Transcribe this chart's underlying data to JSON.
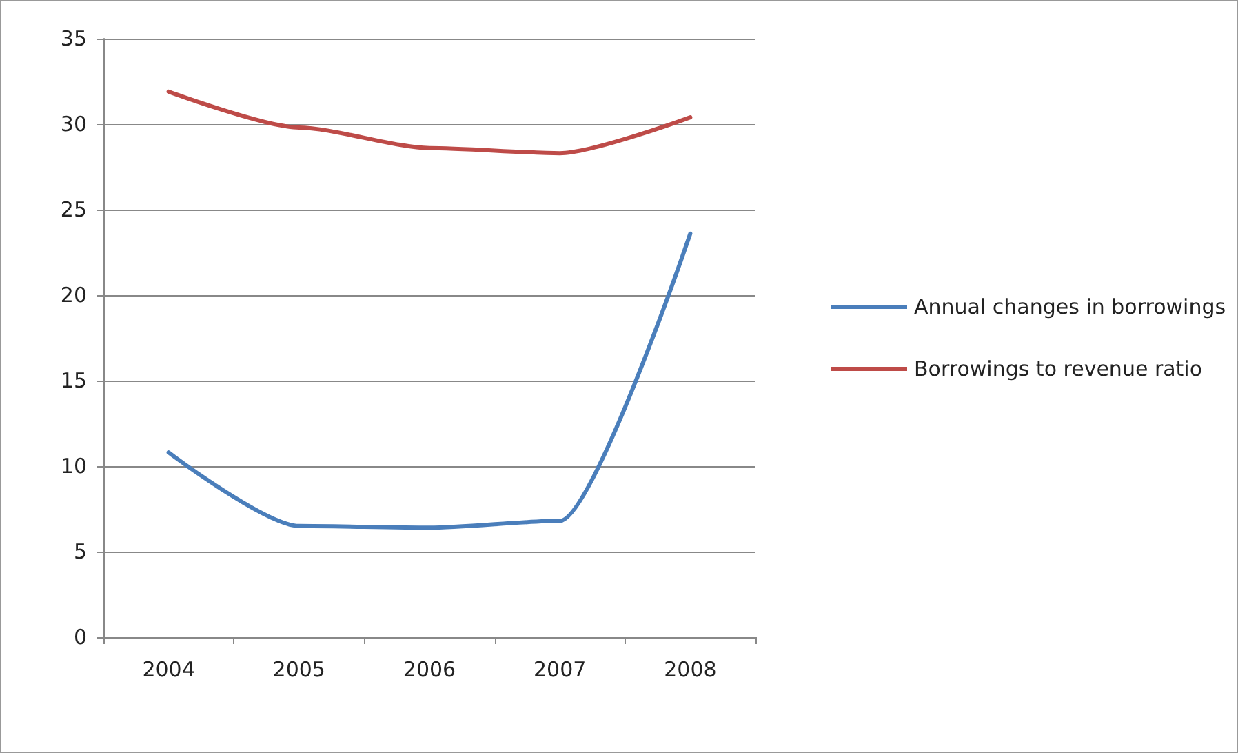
{
  "chart_data": {
    "type": "line",
    "categories": [
      "2004",
      "2005",
      "2006",
      "2007",
      "2008"
    ],
    "series": [
      {
        "name": "Annual changes in borrowings",
        "color": "#4a7ebb",
        "values": [
          10.8,
          6.5,
          6.4,
          6.8,
          23.6
        ]
      },
      {
        "name": "Borrowings to revenue ratio",
        "color": "#be4b48",
        "values": [
          31.9,
          29.8,
          28.6,
          28.3,
          30.4
        ]
      }
    ],
    "ylim": [
      0,
      35
    ],
    "yticks": [
      0,
      5,
      10,
      15,
      20,
      25,
      30,
      35
    ],
    "grid": "y",
    "legend": "right",
    "marker": "none",
    "line_style": "solid"
  }
}
